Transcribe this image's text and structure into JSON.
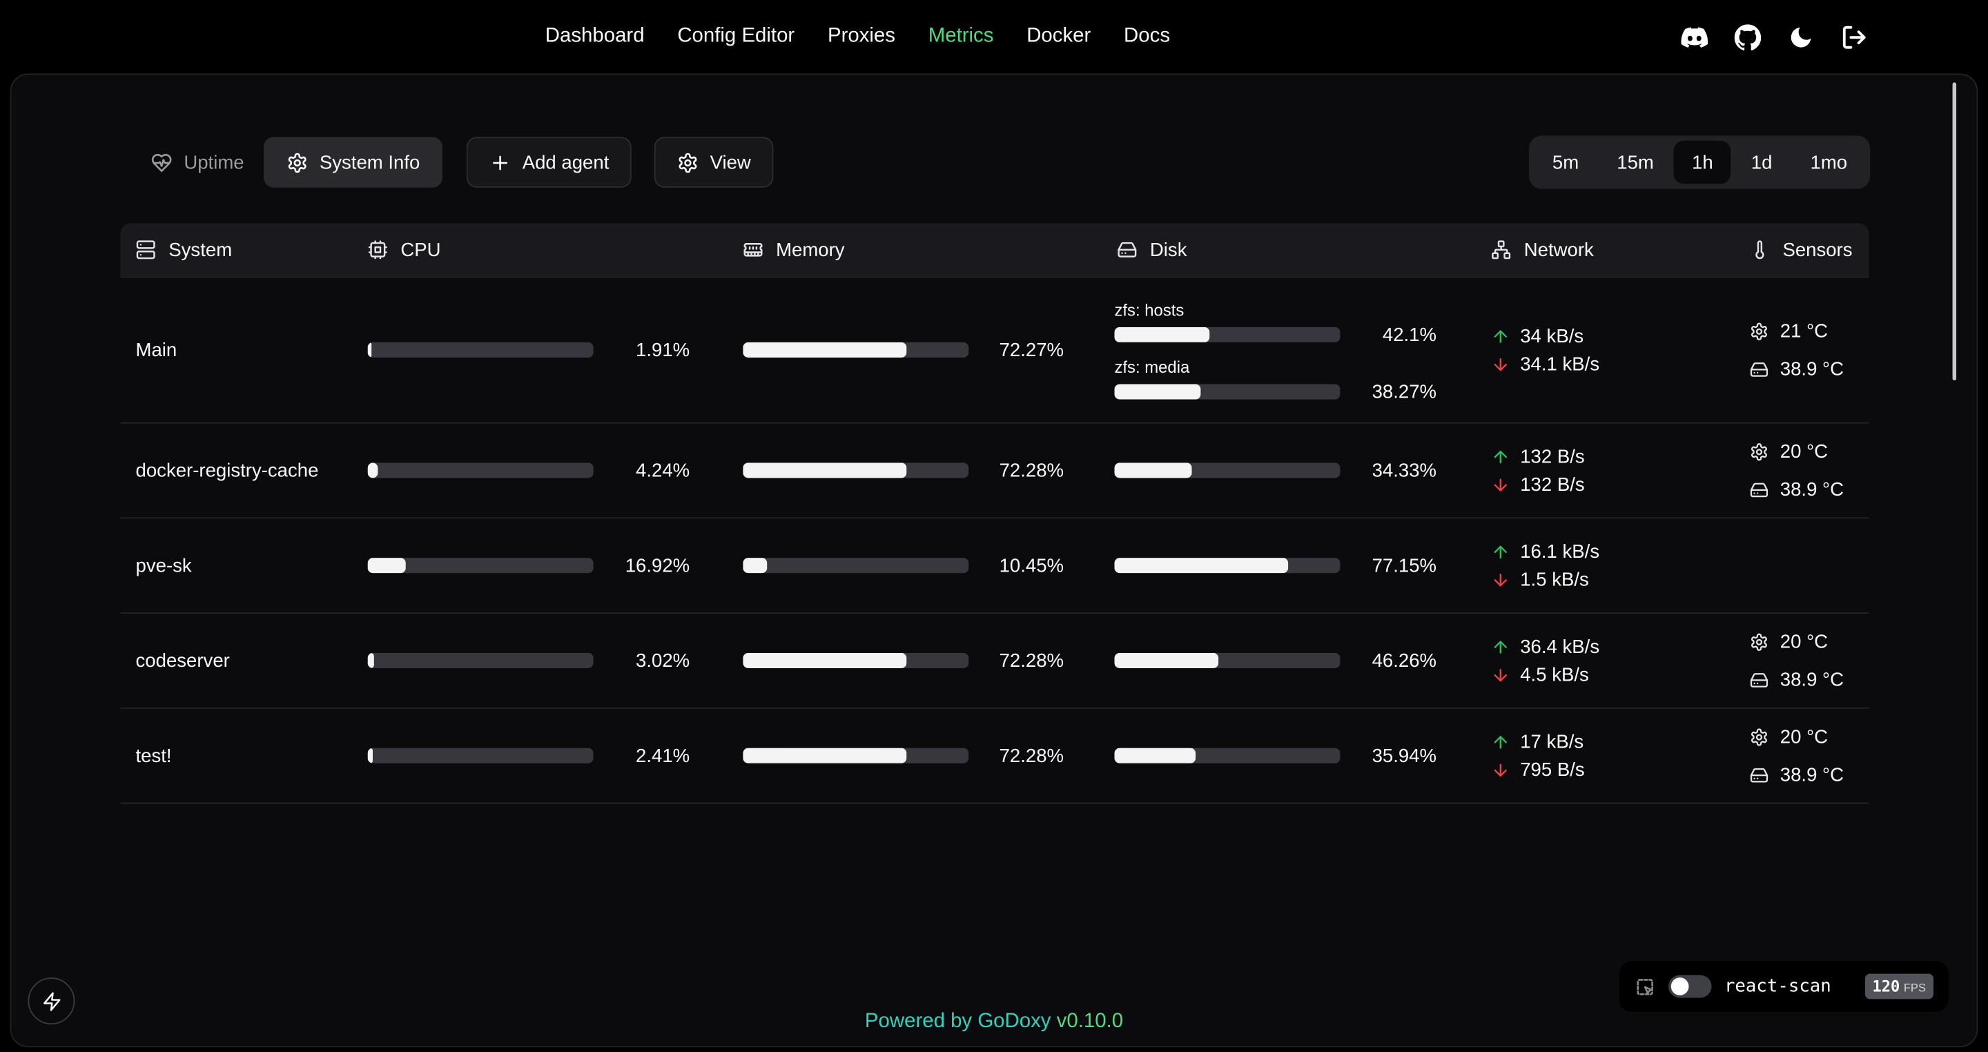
{
  "nav": {
    "items": [
      {
        "label": "Dashboard"
      },
      {
        "label": "Config Editor"
      },
      {
        "label": "Proxies"
      },
      {
        "label": "Metrics",
        "active": true
      },
      {
        "label": "Docker"
      },
      {
        "label": "Docs"
      }
    ]
  },
  "icons": {
    "nav_right": [
      "discord-icon",
      "github-icon",
      "moon-icon",
      "logout-icon"
    ],
    "columns": [
      "server-icon",
      "cpu-icon",
      "memory-icon",
      "hard-drive-icon",
      "network-icon",
      "thermometer-icon"
    ],
    "network": [
      "arrow-up-icon",
      "arrow-down-icon"
    ],
    "sensors": [
      "gear-icon",
      "hard-drive-icon"
    ],
    "misc": [
      "heart-pulse-icon",
      "gear-icon",
      "plus-icon",
      "zap-icon",
      "scan-icon"
    ]
  },
  "toolbar": {
    "uptime": "Uptime",
    "system_info": "System Info",
    "add_agent": "Add agent",
    "view": "View",
    "time_ranges": [
      "5m",
      "15m",
      "1h",
      "1d",
      "1mo"
    ],
    "active_range": "1h"
  },
  "table": {
    "columns": [
      "System",
      "CPU",
      "Memory",
      "Disk",
      "Network",
      "Sensors"
    ],
    "rows": [
      {
        "name": "Main",
        "cpu": {
          "percent": 1.91,
          "label": "1.91%"
        },
        "memory": {
          "percent": 72.27,
          "label": "72.27%"
        },
        "disks": [
          {
            "name": "zfs: hosts",
            "percent": 42.1,
            "label": "42.1%"
          },
          {
            "name": "zfs: media",
            "percent": 38.27,
            "label": "38.27%"
          }
        ],
        "network": {
          "upload": "34 kB/s",
          "download": "34.1 kB/s"
        },
        "sensors": {
          "cpu_temp": "21 °C",
          "disk_temp": "38.9 °C"
        }
      },
      {
        "name": "docker-registry-cache",
        "cpu": {
          "percent": 4.24,
          "label": "4.24%"
        },
        "memory": {
          "percent": 72.28,
          "label": "72.28%"
        },
        "disks": [
          {
            "percent": 34.33,
            "label": "34.33%"
          }
        ],
        "network": {
          "upload": "132 B/s",
          "download": "132 B/s"
        },
        "sensors": {
          "cpu_temp": "20 °C",
          "disk_temp": "38.9 °C"
        }
      },
      {
        "name": "pve-sk",
        "cpu": {
          "percent": 16.92,
          "label": "16.92%"
        },
        "memory": {
          "percent": 10.45,
          "label": "10.45%"
        },
        "disks": [
          {
            "percent": 77.15,
            "label": "77.15%"
          }
        ],
        "network": {
          "upload": "16.1 kB/s",
          "download": "1.5 kB/s"
        },
        "sensors": null
      },
      {
        "name": "codeserver",
        "cpu": {
          "percent": 3.02,
          "label": "3.02%"
        },
        "memory": {
          "percent": 72.28,
          "label": "72.28%"
        },
        "disks": [
          {
            "percent": 46.26,
            "label": "46.26%"
          }
        ],
        "network": {
          "upload": "36.4 kB/s",
          "download": "4.5 kB/s"
        },
        "sensors": {
          "cpu_temp": "20 °C",
          "disk_temp": "38.9 °C"
        }
      },
      {
        "name": "test!",
        "cpu": {
          "percent": 2.41,
          "label": "2.41%"
        },
        "memory": {
          "percent": 72.28,
          "label": "72.28%"
        },
        "disks": [
          {
            "percent": 35.94,
            "label": "35.94%"
          }
        ],
        "network": {
          "upload": "17 kB/s",
          "download": "795 B/s"
        },
        "sensors": {
          "cpu_temp": "20 °C",
          "disk_temp": "38.9 °C"
        }
      }
    ]
  },
  "footer": {
    "powered_by": "Powered by",
    "brand": "GoDoxy",
    "version": "v0.10.0"
  },
  "react_scan": {
    "label": "react-scan",
    "fps": "120",
    "fps_unit": "FPS",
    "toggle_on": false
  },
  "colors": {
    "accent_green": "#4ade80",
    "teal": "#2dd4bf",
    "upload_green": "#22c55e",
    "download_red": "#ef4444"
  }
}
